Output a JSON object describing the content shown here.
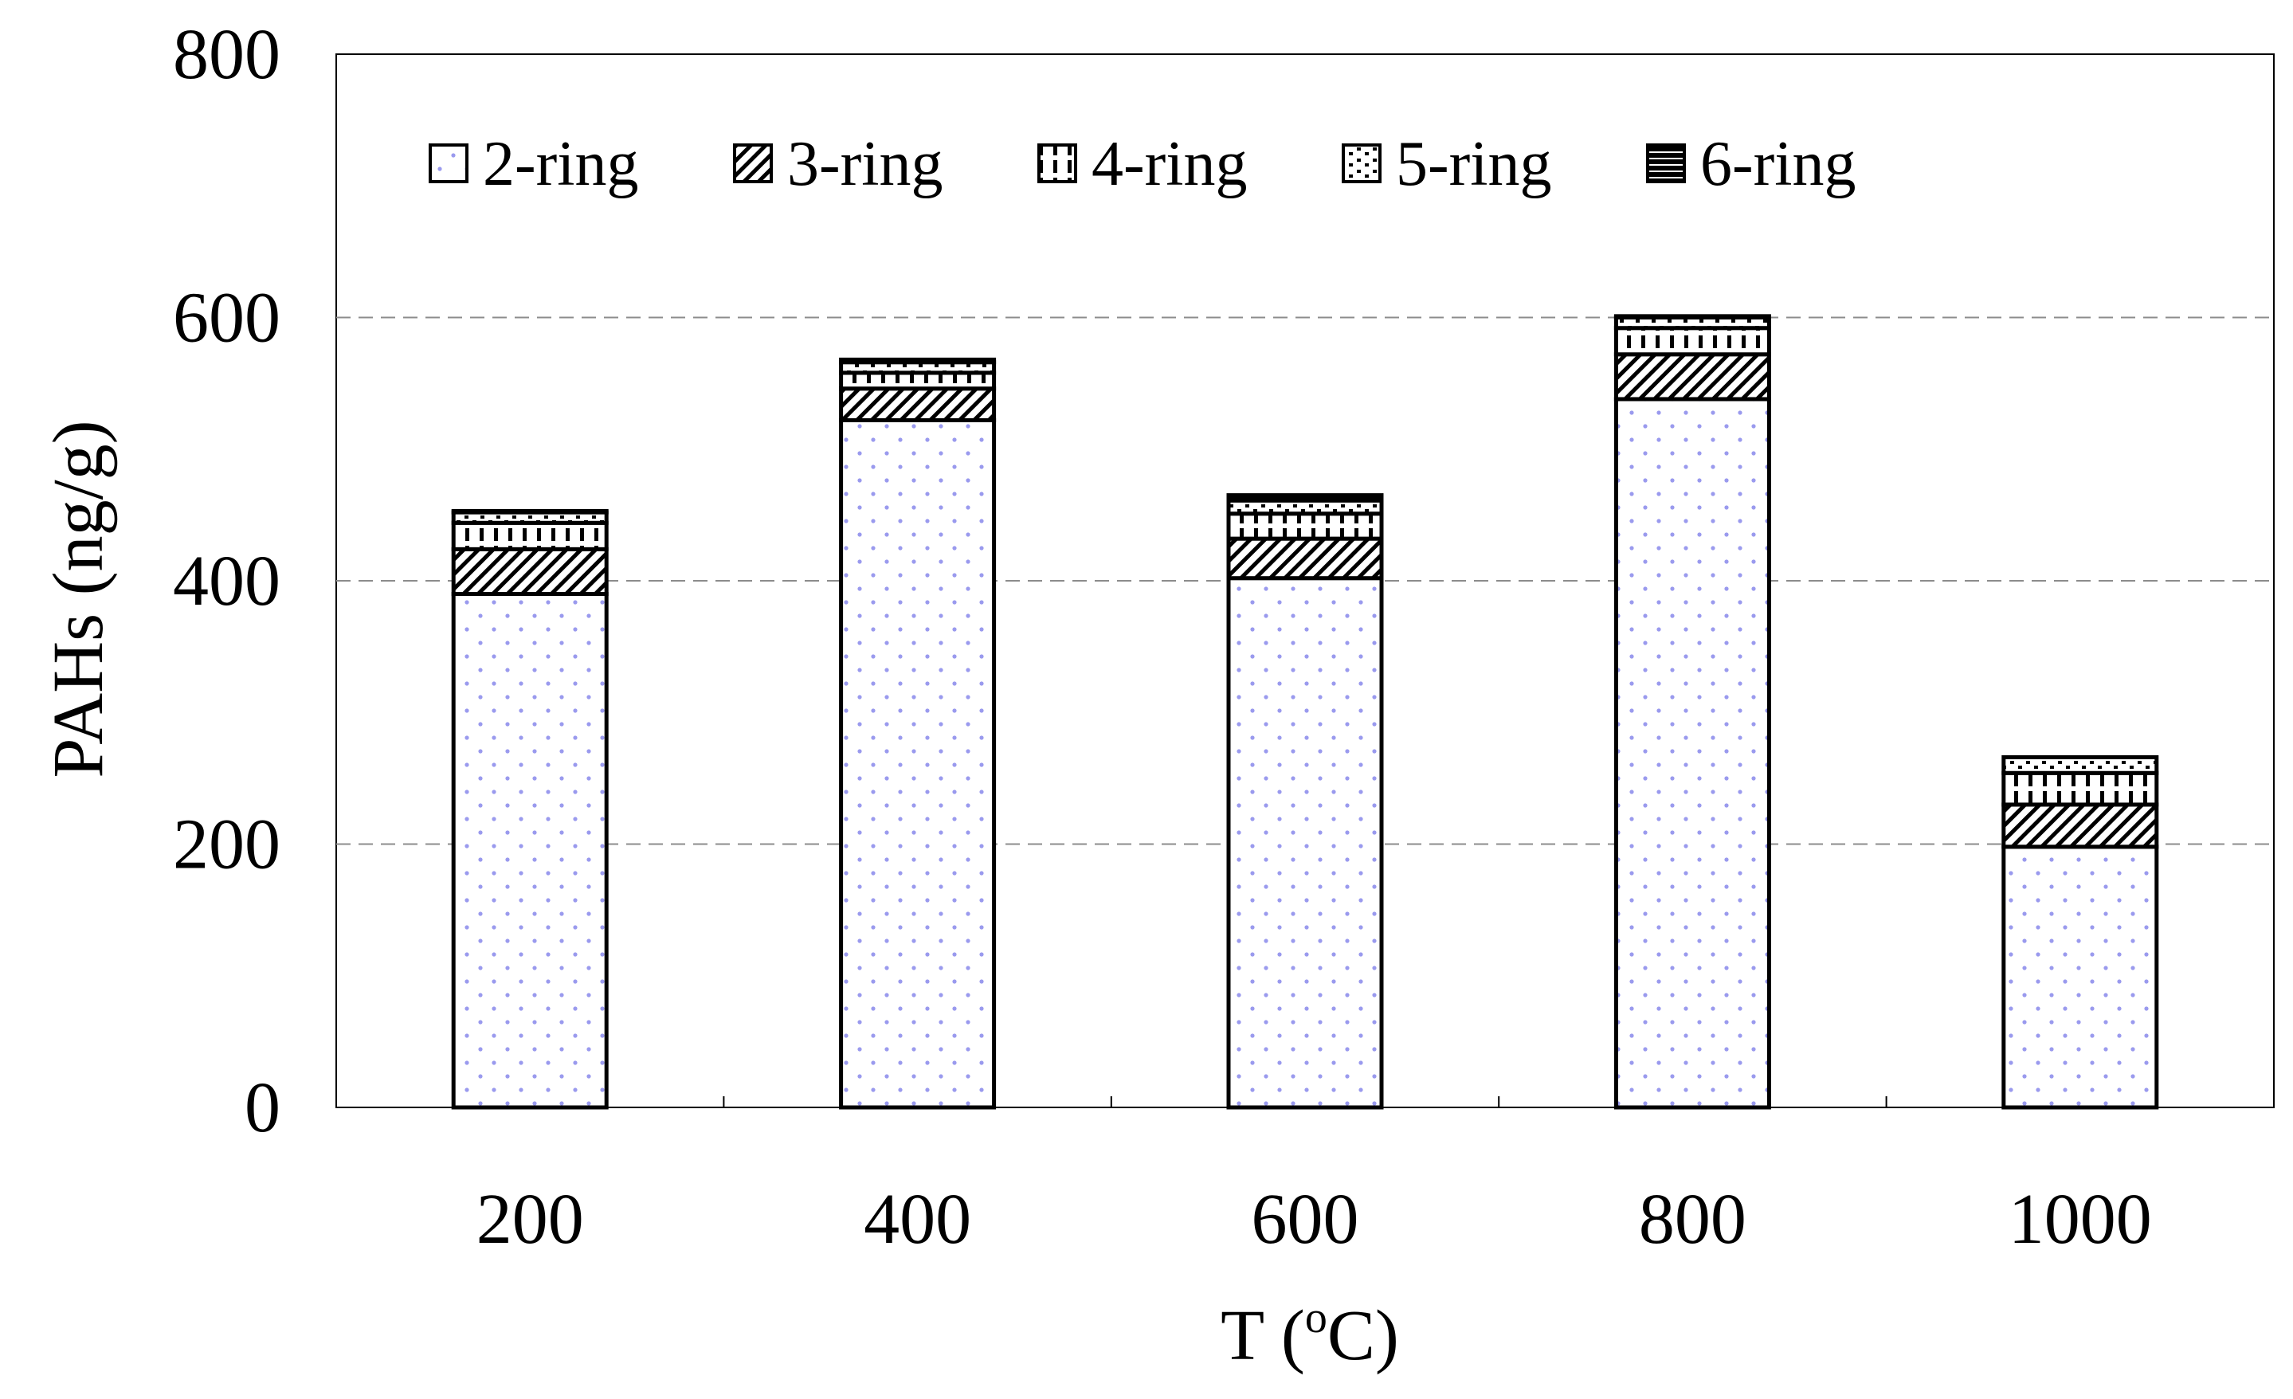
{
  "chart_data": {
    "type": "bar",
    "stacked": true,
    "categories": [
      "200",
      "400",
      "600",
      "800",
      "1000"
    ],
    "series": [
      {
        "name": "2-ring",
        "values": [
          390,
          522,
          402,
          538,
          198
        ]
      },
      {
        "name": "3-ring",
        "values": [
          34,
          24,
          30,
          34,
          32
        ]
      },
      {
        "name": "4-ring",
        "values": [
          20,
          12,
          19,
          20,
          24
        ]
      },
      {
        "name": "5-ring",
        "values": [
          8,
          8,
          10,
          8,
          12
        ]
      },
      {
        "name": "6-ring",
        "values": [
          1,
          2,
          4,
          1,
          0
        ]
      }
    ],
    "xlabel": "T (",
    "xlabel_superscript": "o",
    "xlabel_suffix": "C)",
    "ylabel": "PAHs (ng/g)",
    "ylim": [
      0,
      800
    ],
    "yticks": [
      "0",
      "200",
      "400",
      "600",
      "800"
    ],
    "grid": "y-dashed",
    "legend_placement": "top-inside",
    "colors": {
      "dot": "#9a9aee",
      "stroke": "#000000",
      "grid": "#8c8c8c"
    }
  }
}
